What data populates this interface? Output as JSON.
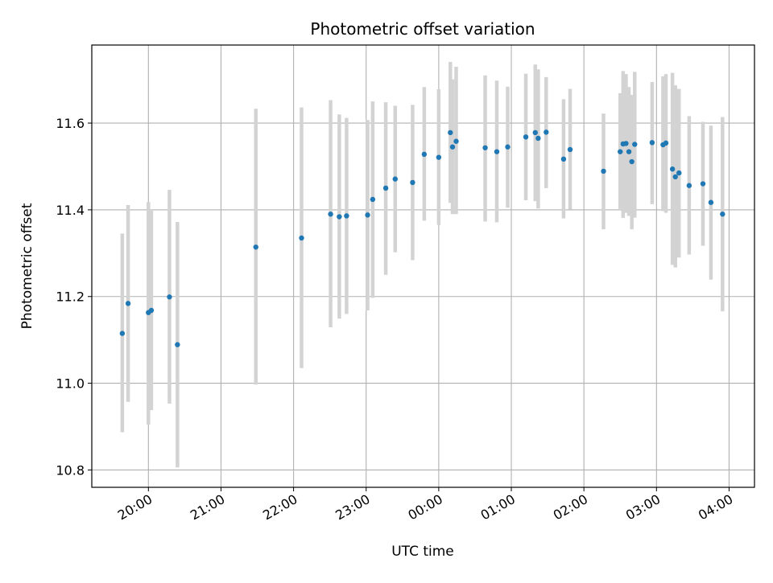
{
  "chart_data": {
    "type": "scatter",
    "title": "Photometric offset variation",
    "xlabel": "UTC time",
    "ylabel": "Photometric offset",
    "grid": true,
    "x_unit": "hours since 00:00 UTC (2nd day)",
    "xlim": [
      -4.78,
      4.35
    ],
    "ylim": [
      10.76,
      11.78
    ],
    "x_ticks": [
      {
        "value": -4,
        "label": "20:00"
      },
      {
        "value": -3,
        "label": "21:00"
      },
      {
        "value": -2,
        "label": "22:00"
      },
      {
        "value": -1,
        "label": "23:00"
      },
      {
        "value": 0,
        "label": "00:00"
      },
      {
        "value": 1,
        "label": "01:00"
      },
      {
        "value": 2,
        "label": "02:00"
      },
      {
        "value": 3,
        "label": "03:00"
      },
      {
        "value": 4,
        "label": "04:00"
      }
    ],
    "y_ticks": [
      {
        "value": 10.8,
        "label": "10.8"
      },
      {
        "value": 11.0,
        "label": "11.0"
      },
      {
        "value": 11.2,
        "label": "11.2"
      },
      {
        "value": 11.4,
        "label": "11.4"
      },
      {
        "value": 11.6,
        "label": "11.6"
      }
    ],
    "point_color": "#1f77b4",
    "errorbar_color": "#d3d3d3",
    "points": [
      {
        "x": -4.36,
        "y": 11.115,
        "err_low": 10.887,
        "err_high": 11.345
      },
      {
        "x": -4.28,
        "y": 11.184,
        "err_low": 10.957,
        "err_high": 11.411
      },
      {
        "x": -4.0,
        "y": 11.163,
        "err_low": 10.905,
        "err_high": 11.418
      },
      {
        "x": -3.96,
        "y": 11.168,
        "err_low": 10.938,
        "err_high": 11.398
      },
      {
        "x": -3.71,
        "y": 11.199,
        "err_low": 10.953,
        "err_high": 11.446
      },
      {
        "x": -3.6,
        "y": 11.089,
        "err_low": 10.806,
        "err_high": 11.372
      },
      {
        "x": -2.52,
        "y": 11.314,
        "err_low": 10.997,
        "err_high": 11.633
      },
      {
        "x": -1.89,
        "y": 11.335,
        "err_low": 11.035,
        "err_high": 11.636
      },
      {
        "x": -1.49,
        "y": 11.39,
        "err_low": 11.129,
        "err_high": 11.653
      },
      {
        "x": -1.37,
        "y": 11.384,
        "err_low": 11.149,
        "err_high": 11.62
      },
      {
        "x": -1.27,
        "y": 11.386,
        "err_low": 11.16,
        "err_high": 11.612
      },
      {
        "x": -0.98,
        "y": 11.388,
        "err_low": 11.168,
        "err_high": 11.607
      },
      {
        "x": -0.91,
        "y": 11.424,
        "err_low": 11.197,
        "err_high": 11.65
      },
      {
        "x": -0.73,
        "y": 11.45,
        "err_low": 11.25,
        "err_high": 11.648
      },
      {
        "x": -0.6,
        "y": 11.471,
        "err_low": 11.302,
        "err_high": 11.64
      },
      {
        "x": -0.36,
        "y": 11.463,
        "err_low": 11.284,
        "err_high": 11.642
      },
      {
        "x": -0.2,
        "y": 11.528,
        "err_low": 11.375,
        "err_high": 11.683
      },
      {
        "x": 0.0,
        "y": 11.521,
        "err_low": 11.365,
        "err_high": 11.678
      },
      {
        "x": 0.16,
        "y": 11.578,
        "err_low": 11.416,
        "err_high": 11.741
      },
      {
        "x": 0.19,
        "y": 11.545,
        "err_low": 11.39,
        "err_high": 11.701
      },
      {
        "x": 0.24,
        "y": 11.558,
        "err_low": 11.39,
        "err_high": 11.73
      },
      {
        "x": 0.64,
        "y": 11.543,
        "err_low": 11.373,
        "err_high": 11.71
      },
      {
        "x": 0.8,
        "y": 11.534,
        "err_low": 11.371,
        "err_high": 11.698
      },
      {
        "x": 0.95,
        "y": 11.545,
        "err_low": 11.405,
        "err_high": 11.684
      },
      {
        "x": 1.2,
        "y": 11.568,
        "err_low": 11.422,
        "err_high": 11.714
      },
      {
        "x": 1.33,
        "y": 11.578,
        "err_low": 11.42,
        "err_high": 11.735
      },
      {
        "x": 1.37,
        "y": 11.565,
        "err_low": 11.403,
        "err_high": 11.724
      },
      {
        "x": 1.48,
        "y": 11.579,
        "err_low": 11.45,
        "err_high": 11.706
      },
      {
        "x": 1.72,
        "y": 11.517,
        "err_low": 11.38,
        "err_high": 11.655
      },
      {
        "x": 1.81,
        "y": 11.539,
        "err_low": 11.401,
        "err_high": 11.679
      },
      {
        "x": 2.27,
        "y": 11.489,
        "err_low": 11.355,
        "err_high": 11.622
      },
      {
        "x": 2.5,
        "y": 11.534,
        "err_low": 11.402,
        "err_high": 11.669
      },
      {
        "x": 2.54,
        "y": 11.552,
        "err_low": 11.381,
        "err_high": 11.72
      },
      {
        "x": 2.58,
        "y": 11.553,
        "err_low": 11.393,
        "err_high": 11.713
      },
      {
        "x": 2.62,
        "y": 11.534,
        "err_low": 11.386,
        "err_high": 11.683
      },
      {
        "x": 2.66,
        "y": 11.511,
        "err_low": 11.355,
        "err_high": 11.665
      },
      {
        "x": 2.7,
        "y": 11.551,
        "err_low": 11.382,
        "err_high": 11.718
      },
      {
        "x": 2.94,
        "y": 11.555,
        "err_low": 11.413,
        "err_high": 11.695
      },
      {
        "x": 3.09,
        "y": 11.55,
        "err_low": 11.397,
        "err_high": 11.708
      },
      {
        "x": 3.13,
        "y": 11.554,
        "err_low": 11.393,
        "err_high": 11.713
      },
      {
        "x": 3.22,
        "y": 11.494,
        "err_low": 11.273,
        "err_high": 11.716
      },
      {
        "x": 3.26,
        "y": 11.476,
        "err_low": 11.267,
        "err_high": 11.687
      },
      {
        "x": 3.31,
        "y": 11.485,
        "err_low": 11.29,
        "err_high": 11.679
      },
      {
        "x": 3.45,
        "y": 11.456,
        "err_low": 11.297,
        "err_high": 11.616
      },
      {
        "x": 3.64,
        "y": 11.46,
        "err_low": 11.317,
        "err_high": 11.603
      },
      {
        "x": 3.75,
        "y": 11.417,
        "err_low": 11.239,
        "err_high": 11.594
      },
      {
        "x": 3.91,
        "y": 11.39,
        "err_low": 11.166,
        "err_high": 11.614
      }
    ]
  }
}
